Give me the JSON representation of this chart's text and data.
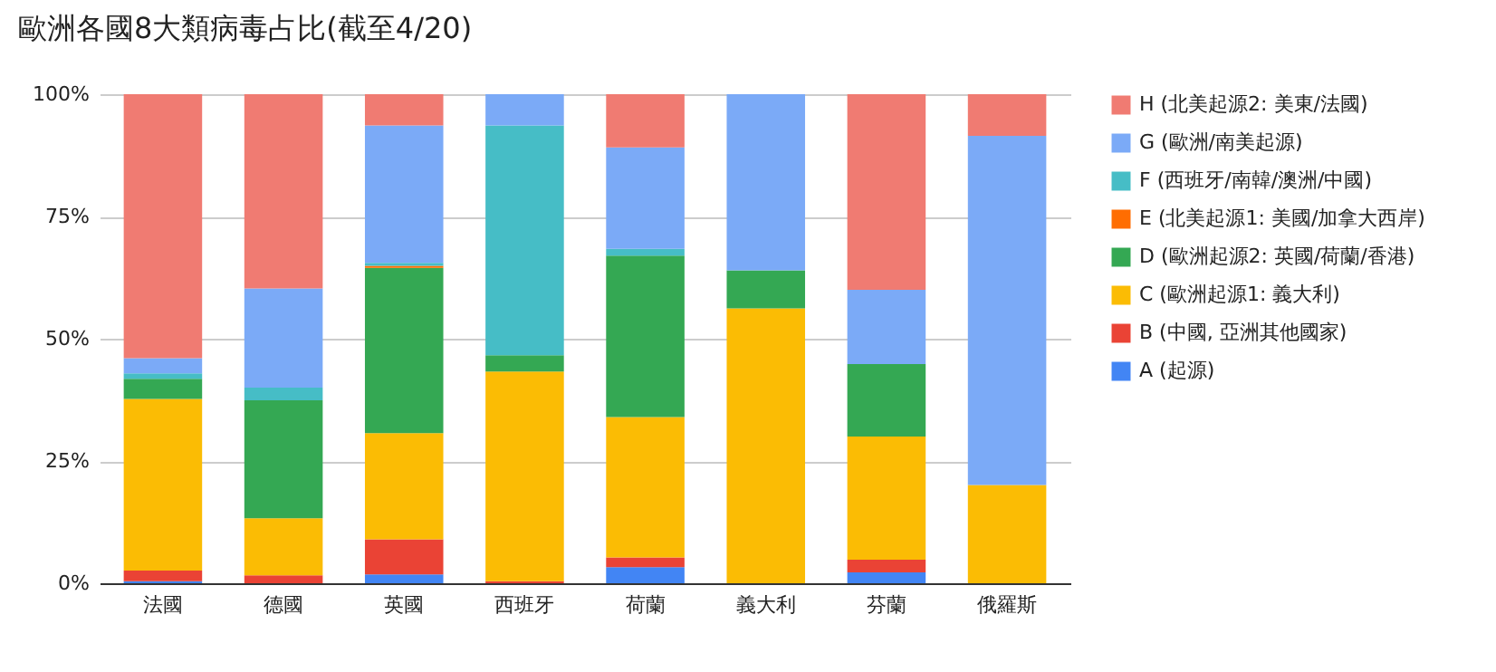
{
  "chart_data": {
    "type": "bar",
    "title": "歐洲各國8大類病毒占比(截至4/20)",
    "stacked": true,
    "categories": [
      "法國",
      "德國",
      "英國",
      "西班牙",
      "荷蘭",
      "義大利",
      "芬蘭",
      "俄羅斯"
    ],
    "series": [
      {
        "name": "A (起源)",
        "color": "#4285f4",
        "values": [
          0.4,
          0,
          1.8,
          0,
          3.3,
          0,
          2.2,
          0
        ]
      },
      {
        "name": "B (中國, 亞洲其他國家)",
        "color": "#ea4335",
        "values": [
          2.2,
          1.6,
          7.2,
          0.4,
          2.0,
          0,
          2.6,
          0
        ]
      },
      {
        "name": "C (歐洲起源1: 義大利)",
        "color": "#fbbc04",
        "values": [
          35.1,
          11.7,
          21.7,
          42.9,
          28.7,
          56.2,
          25.2,
          20.1
        ]
      },
      {
        "name": "D (歐洲起源2: 英國/荷蘭/香港)",
        "color": "#34a853",
        "values": [
          4.1,
          24.1,
          33.8,
          3.3,
          33.0,
          7.8,
          14.8,
          0
        ]
      },
      {
        "name": "E (北美起源1: 美國/加拿大西岸)",
        "color": "#ff6d01",
        "values": [
          0,
          0,
          0.4,
          0,
          0,
          0,
          0,
          0
        ]
      },
      {
        "name": "F (西班牙/南韓/澳洲/中國)",
        "color": "#46bdc6",
        "values": [
          1.1,
          2.6,
          0.6,
          47.0,
          1.4,
          0,
          0,
          0
        ]
      },
      {
        "name": "G (歐洲/南美起源)",
        "color": "#7baaf7",
        "values": [
          3.1,
          20.3,
          28.1,
          6.4,
          20.7,
          36.0,
          15.2,
          71.4
        ]
      },
      {
        "name": "H (北美起源2: 美東/法國)",
        "color": "#f07b72",
        "values": [
          54.0,
          39.7,
          6.4,
          0,
          10.9,
          0,
          40.0,
          8.5
        ]
      }
    ],
    "ylim": [
      0,
      100
    ],
    "yticks": [
      {
        "value": 0,
        "label": "0%"
      },
      {
        "value": 25,
        "label": "25%"
      },
      {
        "value": 50,
        "label": "50%"
      },
      {
        "value": 75,
        "label": "75%"
      },
      {
        "value": 100,
        "label": "100%"
      }
    ],
    "grid": "y",
    "legend": "right"
  }
}
